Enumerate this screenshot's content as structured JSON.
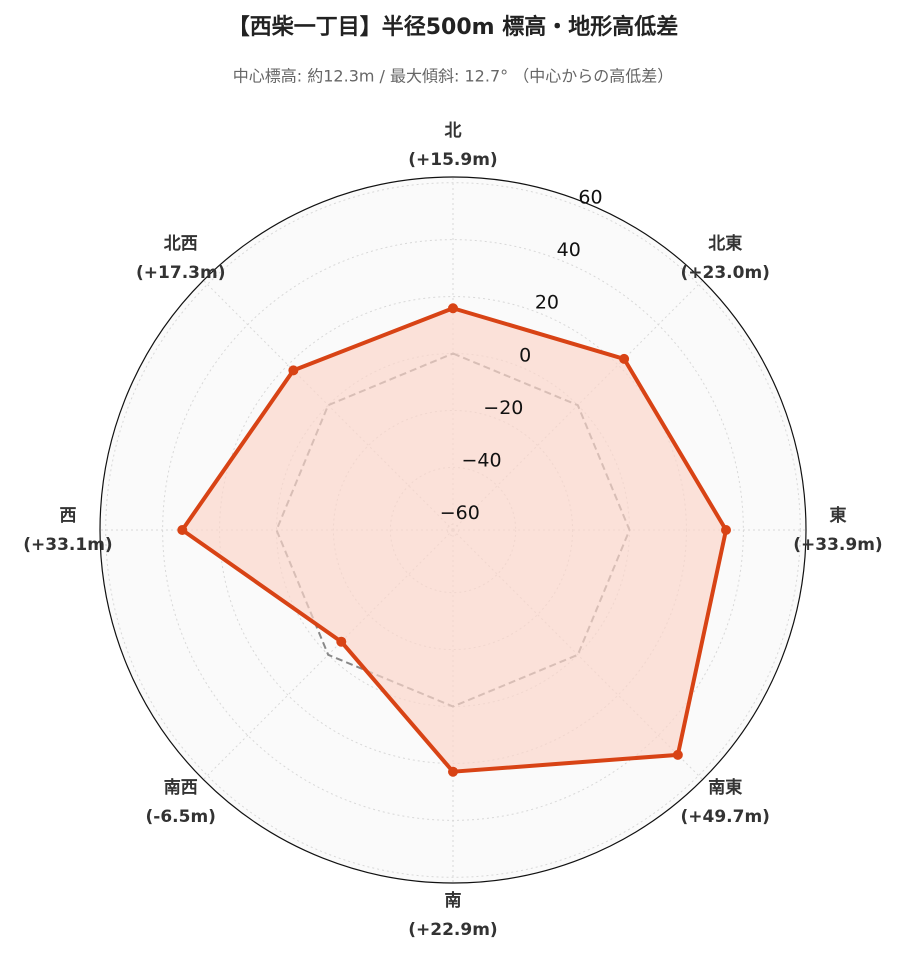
{
  "chart_data": {
    "type": "radar",
    "title": "【西柴一丁目】半径500m 標高・地形高低差",
    "subtitle": "中心標高: 約12.3m / 最大傾斜: 12.7° （中心からの高低差）",
    "categories": [
      "北",
      "北東",
      "東",
      "南東",
      "南",
      "南西",
      "西",
      "北西"
    ],
    "values": [
      15.9,
      23.0,
      33.9,
      49.7,
      22.9,
      -6.5,
      33.1,
      17.3
    ],
    "value_labels": [
      "(+15.9m)",
      "(+23.0m)",
      "(+33.9m)",
      "(+49.7m)",
      "(+22.9m)",
      "(-6.5m)",
      "(+33.1m)",
      "(+17.3m)"
    ],
    "color": "#d84315",
    "fill_color": "#fbd5cb",
    "reference_value": 0,
    "reference_color": "#888888",
    "ylim": [
      -62,
      62
    ],
    "yticks": [
      {
        "value": -60,
        "label": "−60"
      },
      {
        "value": -40,
        "label": "−40"
      },
      {
        "value": -20,
        "label": "−20"
      },
      0,
      20,
      40,
      60
    ],
    "grid": true
  }
}
